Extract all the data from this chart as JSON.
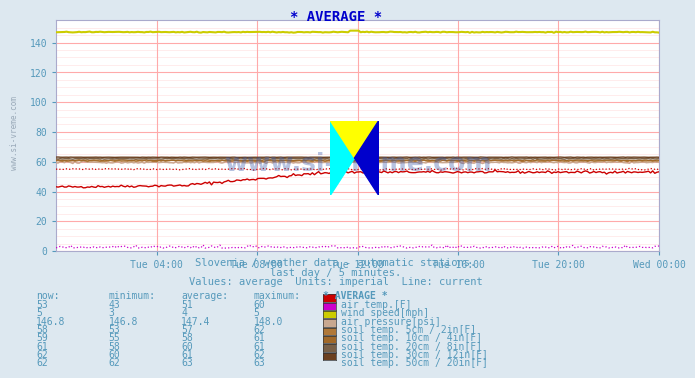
{
  "title": "* AVERAGE *",
  "subtitle1": "Slovenia / weather data - automatic stations.",
  "subtitle2": "last day / 5 minutes.",
  "subtitle3": "Values: average  Units: imperial  Line: current",
  "bg_color": "#dde8f0",
  "plot_bg_color": "#ffffff",
  "grid_color_major": "#ffaaaa",
  "grid_color_minor": "#ffdddd",
  "title_color": "#0000cc",
  "text_color": "#5599bb",
  "xlabel_ticks": [
    "Tue 04:00",
    "Tue 08:00",
    "Tue 12:00",
    "Tue 16:00",
    "Tue 20:00",
    "Wed 00:00"
  ],
  "xlabel_tick_positions": [
    0.167,
    0.333,
    0.5,
    0.667,
    0.833,
    1.0
  ],
  "ylim": [
    0,
    155
  ],
  "yticks": [
    0,
    20,
    40,
    60,
    80,
    100,
    120,
    140
  ],
  "watermark": "www.si-vreme.com",
  "air_temp_color": "#cc0000",
  "wind_speed_color": "#cc00cc",
  "air_pressure_color": "#cccc00",
  "soil_5cm_color": "#c8a890",
  "soil_10cm_color": "#b07838",
  "soil_20cm_color": "#a06828",
  "soil_30cm_color": "#786048",
  "soil_50cm_color": "#6b4020",
  "table_headers": [
    "now:",
    "minimum:",
    "average:",
    "maximum:",
    "* AVERAGE *"
  ],
  "table_data": [
    [
      "53",
      "43",
      "51",
      "60",
      "air temp.[F]",
      "#cc0000"
    ],
    [
      "5",
      "3",
      "4",
      "5",
      "wind speed[mph]",
      "#cc00cc"
    ],
    [
      "146.8",
      "146.8",
      "147.4",
      "148.0",
      "air pressure[psi]",
      "#cccc00"
    ],
    [
      "58",
      "53",
      "57",
      "62",
      "soil temp. 5cm / 2in[F]",
      "#c8a890"
    ],
    [
      "59",
      "55",
      "58",
      "61",
      "soil temp. 10cm / 4in[F]",
      "#b07838"
    ],
    [
      "61",
      "58",
      "60",
      "61",
      "soil temp. 20cm / 8in[F]",
      "#a06828"
    ],
    [
      "62",
      "60",
      "61",
      "62",
      "soil temp. 30cm / 12in[F]",
      "#786048"
    ],
    [
      "62",
      "62",
      "63",
      "63",
      "soil temp. 50cm / 20in[F]",
      "#6b4020"
    ]
  ]
}
